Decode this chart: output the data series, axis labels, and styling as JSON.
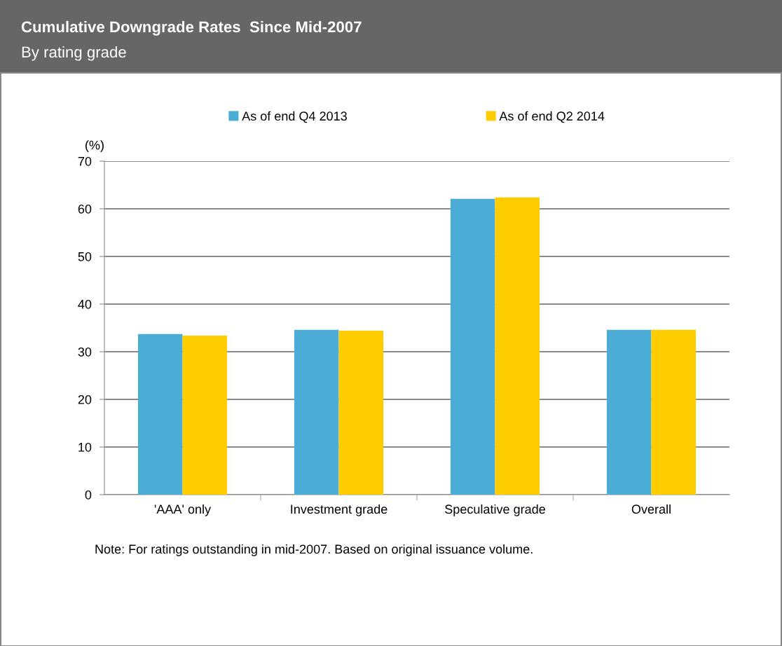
{
  "chart_data": {
    "type": "bar",
    "title": "Cumulative Downgrade Rates  Since Mid-2007",
    "subtitle": "By rating grade",
    "ylabel": "(%)",
    "categories": [
      "'AAA' only",
      "Investment grade",
      "Speculative grade",
      "Overall"
    ],
    "series": [
      {
        "name": "As of end Q4 2013",
        "color": "#4bacd6",
        "values": [
          33.7,
          34.6,
          62.1,
          34.6
        ]
      },
      {
        "name": "As of end Q2 2014",
        "color": "#ffcc00",
        "values": [
          33.4,
          34.4,
          62.4,
          34.6
        ]
      }
    ],
    "ylim": [
      0,
      70
    ],
    "yticks": [
      0,
      10,
      20,
      30,
      40,
      50,
      60,
      70
    ],
    "grid": "y",
    "legend": "top",
    "annotations": [
      "Note: For ratings outstanding in mid-2007. Based on original issuance volume."
    ]
  }
}
